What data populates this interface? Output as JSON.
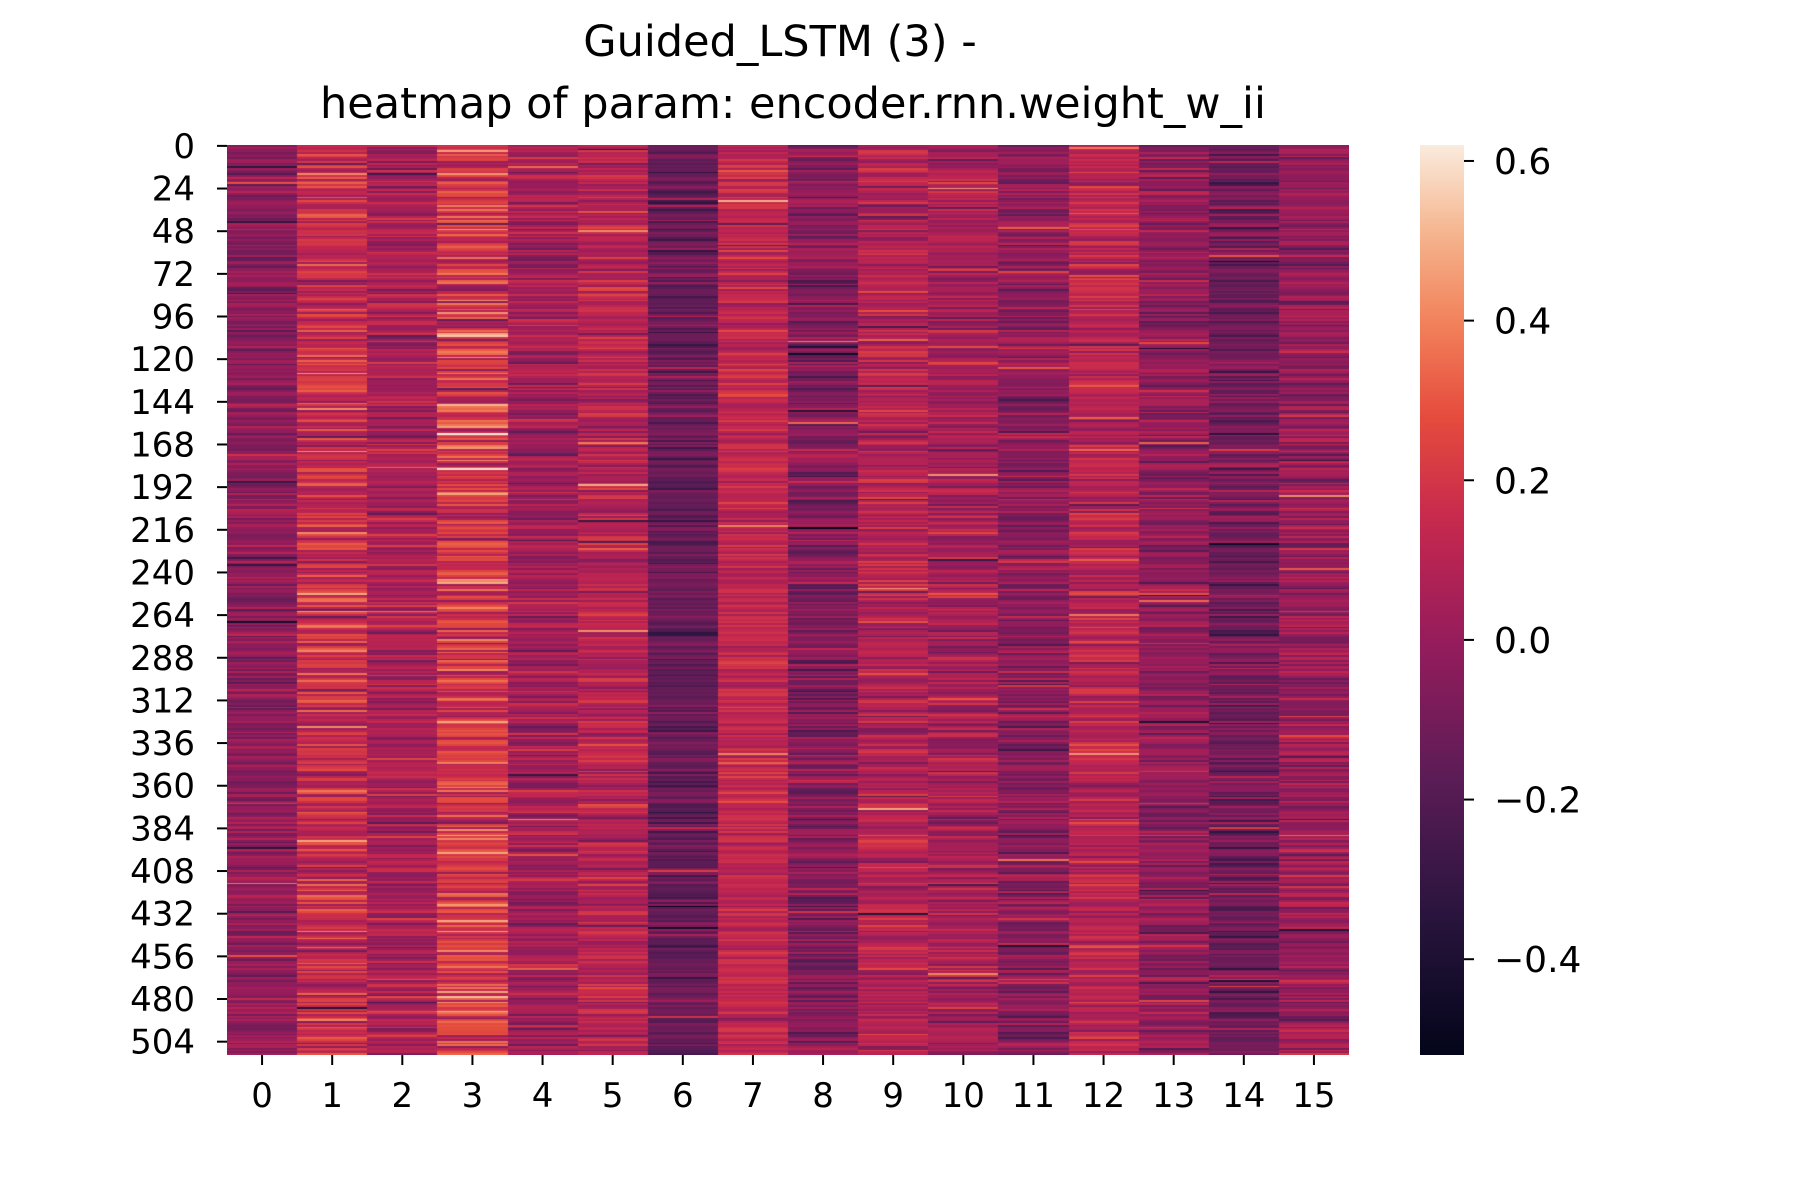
{
  "chart_data": {
    "type": "heatmap",
    "title": "Guided_LSTM (3) -",
    "subtitle": "heatmap of param: encoder.rnn.weight_w_ii",
    "xlabel": "",
    "ylabel": "",
    "n_rows": 512,
    "n_cols": 16,
    "x_tick_labels": [
      "0",
      "1",
      "2",
      "3",
      "4",
      "5",
      "6",
      "7",
      "8",
      "9",
      "10",
      "11",
      "12",
      "13",
      "14",
      "15"
    ],
    "y_tick_labels": [
      "0",
      "24",
      "48",
      "72",
      "96",
      "120",
      "144",
      "168",
      "192",
      "216",
      "240",
      "264",
      "288",
      "312",
      "336",
      "360",
      "384",
      "408",
      "432",
      "456",
      "480",
      "504"
    ],
    "column_means": [
      -0.02,
      0.16,
      0.05,
      0.2,
      0.03,
      0.1,
      -0.14,
      0.13,
      -0.06,
      0.09,
      0.05,
      -0.03,
      0.11,
      -0.01,
      -0.11,
      0.0
    ],
    "column_spread": [
      0.07,
      0.11,
      0.08,
      0.12,
      0.08,
      0.08,
      0.07,
      0.06,
      0.09,
      0.08,
      0.08,
      0.09,
      0.08,
      0.08,
      0.09,
      0.09
    ],
    "value_range": [
      -0.52,
      0.62
    ],
    "colormap": "rocket",
    "colorbar": {
      "ticks": [
        -0.4,
        -0.2,
        0.0,
        0.2,
        0.4,
        0.6
      ],
      "tick_labels": [
        "−0.4",
        "−0.2",
        "0.0",
        "0.2",
        "0.4",
        "0.6"
      ],
      "placement": "right"
    },
    "grid": false,
    "legend": "none"
  }
}
